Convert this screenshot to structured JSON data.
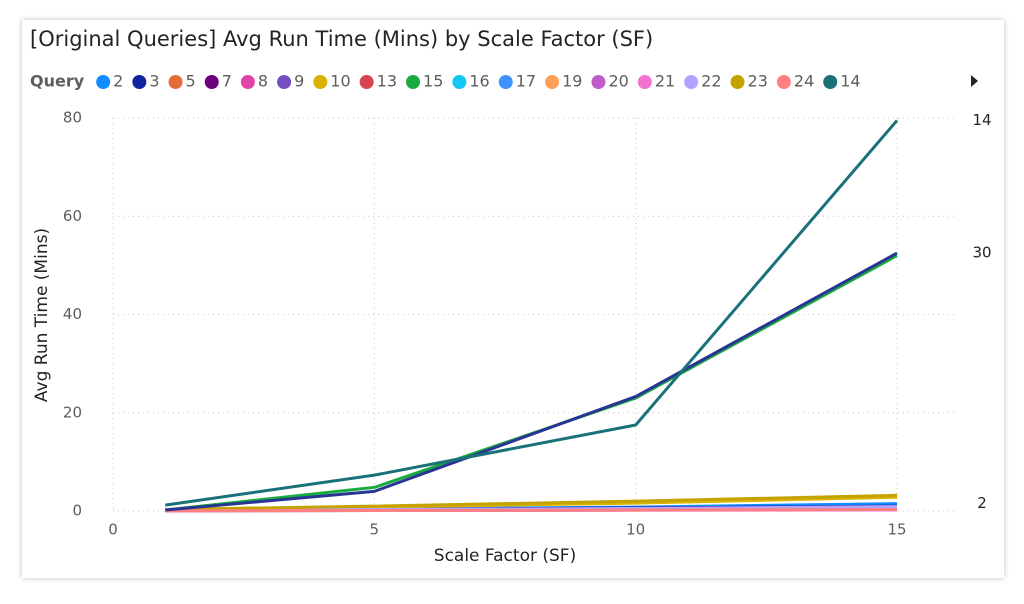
{
  "chart_data": {
    "type": "line",
    "title": "[Original Queries] Avg Run Time (Mins) by Scale Factor (SF)",
    "legend_title": "Query",
    "x_label": "Scale Factor (SF)",
    "y_label": "Avg Run Time (Mins)",
    "x": [
      1,
      5,
      10,
      15
    ],
    "xlim": [
      0,
      15
    ],
    "xticks": [
      0,
      5,
      10,
      15
    ],
    "ylim": [
      0,
      80
    ],
    "yticks": [
      0,
      20,
      40,
      60,
      80
    ],
    "grid": true,
    "series": [
      {
        "name": "2",
        "color": "#118dff",
        "values": [
          0.1,
          0.4,
          0.8,
          1.5
        ],
        "end_label": true
      },
      {
        "name": "3",
        "color": "#12239e",
        "values": [
          0.1,
          0.3,
          0.6,
          1.0
        ]
      },
      {
        "name": "5",
        "color": "#e66c37",
        "values": [
          0.05,
          0.2,
          0.4,
          0.6
        ]
      },
      {
        "name": "7",
        "color": "#6b007b",
        "values": [
          0.1,
          0.3,
          0.5,
          0.8
        ]
      },
      {
        "name": "8",
        "color": "#e044a7",
        "values": [
          0.05,
          0.2,
          0.3,
          0.5
        ]
      },
      {
        "name": "9",
        "color": "#744ec2",
        "values": [
          0.1,
          0.2,
          0.4,
          0.6
        ]
      },
      {
        "name": "10",
        "color": "#d9b300",
        "values": [
          0.2,
          0.8,
          1.6,
          2.8
        ]
      },
      {
        "name": "13",
        "color": "#d64550",
        "values": [
          0.05,
          0.1,
          0.2,
          0.3
        ]
      },
      {
        "name": "15",
        "color": "#1aab40",
        "values": [
          0.2,
          4.8,
          23,
          52
        ]
      },
      {
        "name": "16",
        "color": "#15c6f4",
        "values": [
          0.05,
          0.1,
          0.2,
          0.4
        ]
      },
      {
        "name": "17",
        "color": "#4092ff",
        "values": [
          0.1,
          0.2,
          0.3,
          0.5
        ]
      },
      {
        "name": "19",
        "color": "#ffa058",
        "values": [
          0.05,
          0.15,
          0.3,
          0.5
        ]
      },
      {
        "name": "20",
        "color": "#be5dc9",
        "values": [
          0.05,
          0.1,
          0.2,
          0.3
        ]
      },
      {
        "name": "21",
        "color": "#f472d0",
        "values": [
          0.05,
          0.1,
          0.15,
          0.2
        ]
      },
      {
        "name": "22",
        "color": "#b5a1ff",
        "values": [
          0.1,
          0.3,
          0.5,
          0.9
        ]
      },
      {
        "name": "23",
        "color": "#c4a200",
        "values": [
          0.3,
          1.0,
          2.0,
          3.2
        ]
      },
      {
        "name": "24",
        "color": "#ff8080",
        "values": [
          0.05,
          0.1,
          0.2,
          0.3
        ]
      },
      {
        "name": "30",
        "color": "#283593",
        "values": [
          0.2,
          4.0,
          23.3,
          52.5
        ],
        "end_label": true,
        "legend": false
      },
      {
        "name": "14",
        "color": "#197278",
        "values": [
          1.2,
          7.3,
          17.5,
          79.5
        ],
        "end_label": true
      }
    ]
  }
}
